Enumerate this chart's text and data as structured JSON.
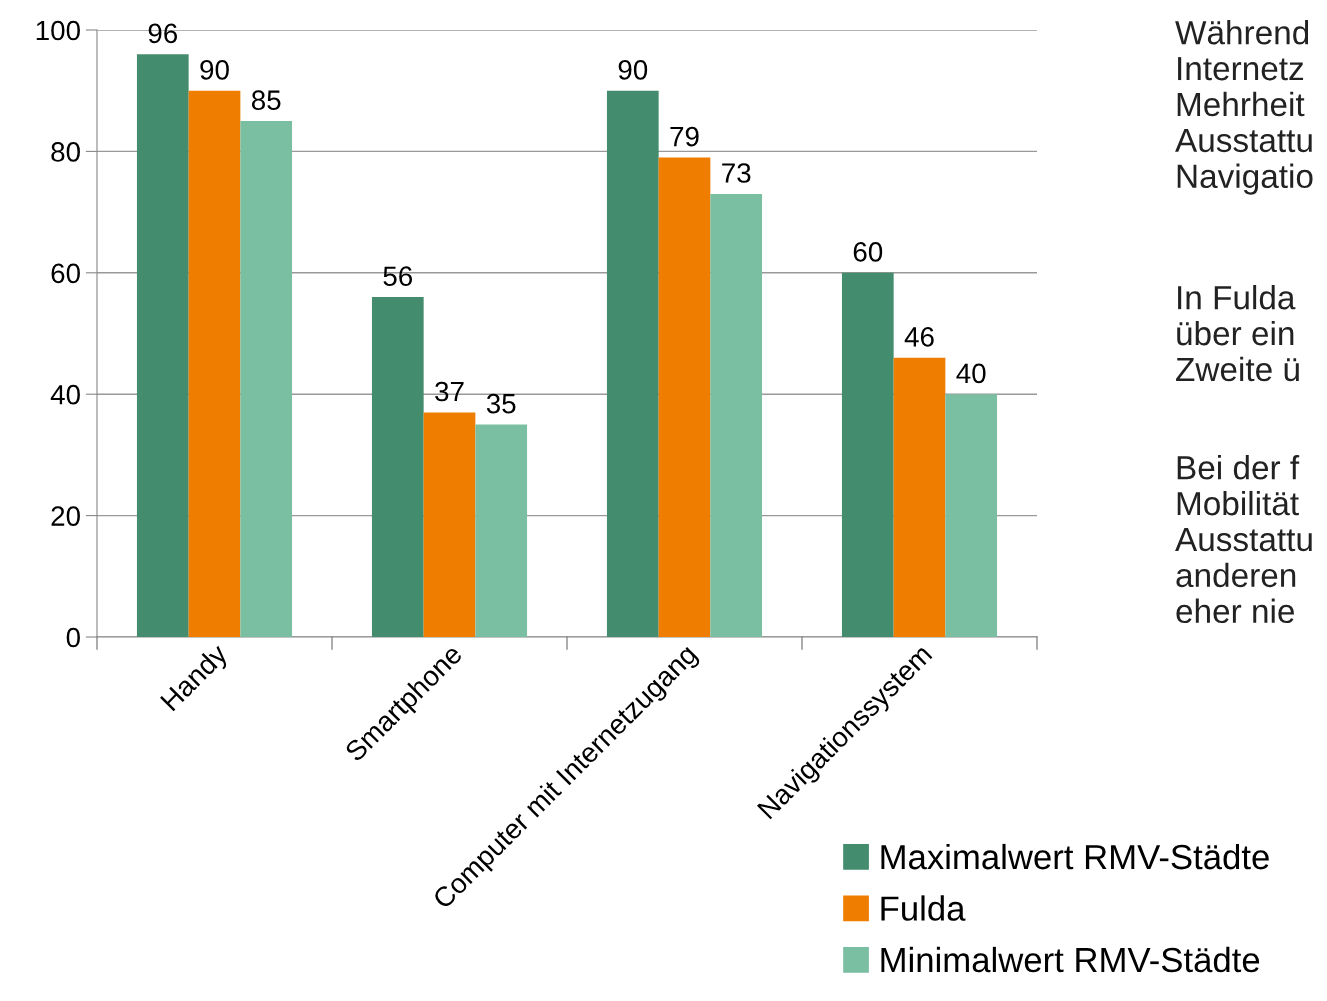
{
  "chart_data": {
    "type": "bar",
    "categories": [
      "Handy",
      "Smartphone",
      "Computer mit Internetzugang",
      "Navigationssystem"
    ],
    "series": [
      {
        "name": "Maximalwert RMV-Städte",
        "color": "#448c6e",
        "values": [
          96,
          56,
          90,
          60
        ]
      },
      {
        "name": "Fulda",
        "color": "#ef7d00",
        "values": [
          90,
          37,
          79,
          46
        ]
      },
      {
        "name": "Minimalwert RMV-Städte",
        "color": "#7bbfa2",
        "values": [
          85,
          35,
          73,
          40
        ]
      }
    ],
    "ylim": [
      0,
      100
    ],
    "yticks": [
      0,
      20,
      40,
      60,
      80,
      100
    ],
    "grid": "y",
    "data_labels": true,
    "legend": "bottom right",
    "annotations": [
      "Während\nInternetz\nMehrheit\nAusstattu\nNavigatio",
      "In Fulda\nüber ein\nZweite ü",
      "Bei der f\nMobilität\nAusstattu\nanderen\neher nie"
    ]
  }
}
